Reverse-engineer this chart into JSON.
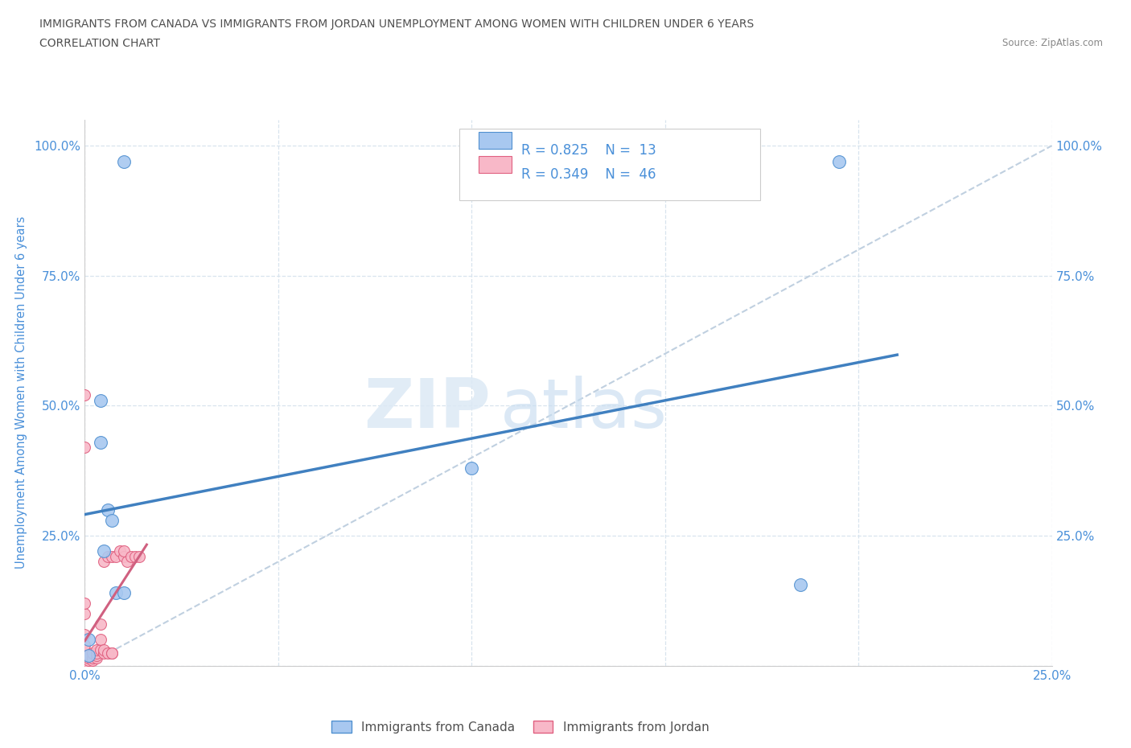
{
  "title_line1": "IMMIGRANTS FROM CANADA VS IMMIGRANTS FROM JORDAN UNEMPLOYMENT AMONG WOMEN WITH CHILDREN UNDER 6 YEARS",
  "title_line2": "CORRELATION CHART",
  "source": "Source: ZipAtlas.com",
  "ylabel": "Unemployment Among Women with Children Under 6 years",
  "watermark_zip": "ZIP",
  "watermark_atlas": "atlas",
  "xlim": [
    0.0,
    0.25
  ],
  "ylim": [
    0.0,
    1.05
  ],
  "x_ticks": [
    0.0,
    0.05,
    0.1,
    0.15,
    0.2,
    0.25
  ],
  "x_tick_labels": [
    "0.0%",
    "",
    "",
    "",
    "",
    "25.0%"
  ],
  "y_ticks": [
    0.0,
    0.25,
    0.5,
    0.75,
    1.0
  ],
  "y_tick_labels": [
    "",
    "25.0%",
    "50.0%",
    "75.0%",
    "100.0%"
  ],
  "canada_fill": "#A8C8F0",
  "canada_edge": "#5090D0",
  "jordan_fill": "#F8B8C8",
  "jordan_edge": "#E06080",
  "canada_line_color": "#4080C0",
  "jordan_line_color": "#D06080",
  "diagonal_color": "#C0D0E0",
  "grid_color": "#D8E4EE",
  "R_canada": 0.825,
  "N_canada": 13,
  "R_jordan": 0.349,
  "N_jordan": 46,
  "canada_points_x": [
    0.001,
    0.001,
    0.004,
    0.004,
    0.005,
    0.006,
    0.007,
    0.008,
    0.01,
    0.01,
    0.1,
    0.185,
    0.195
  ],
  "canada_points_y": [
    0.02,
    0.05,
    0.51,
    0.43,
    0.22,
    0.3,
    0.28,
    0.14,
    0.14,
    0.97,
    0.38,
    0.155,
    0.97
  ],
  "jordan_points_x": [
    0.0,
    0.0,
    0.0,
    0.0,
    0.0,
    0.0,
    0.0,
    0.0,
    0.0,
    0.0,
    0.0,
    0.0,
    0.0,
    0.0,
    0.0,
    0.0,
    0.001,
    0.001,
    0.001,
    0.001,
    0.002,
    0.002,
    0.002,
    0.003,
    0.003,
    0.003,
    0.003,
    0.004,
    0.004,
    0.004,
    0.005,
    0.005,
    0.005,
    0.006,
    0.006,
    0.007,
    0.007,
    0.007,
    0.008,
    0.009,
    0.01,
    0.01,
    0.011,
    0.012,
    0.013,
    0.014
  ],
  "jordan_points_y": [
    0.0,
    0.0,
    0.0,
    0.005,
    0.01,
    0.015,
    0.02,
    0.025,
    0.03,
    0.04,
    0.06,
    0.1,
    0.12,
    0.42,
    0.52,
    0.0,
    0.005,
    0.01,
    0.015,
    0.02,
    0.01,
    0.015,
    0.025,
    0.015,
    0.02,
    0.025,
    0.03,
    0.03,
    0.05,
    0.08,
    0.025,
    0.03,
    0.2,
    0.025,
    0.21,
    0.025,
    0.21,
    0.025,
    0.21,
    0.22,
    0.21,
    0.22,
    0.2,
    0.21,
    0.21,
    0.21
  ],
  "text_blue": "#4A90D9",
  "title_color": "#505050",
  "axis_color": "#4A90D9",
  "source_color": "#888888",
  "legend_border": "#CCCCCC"
}
